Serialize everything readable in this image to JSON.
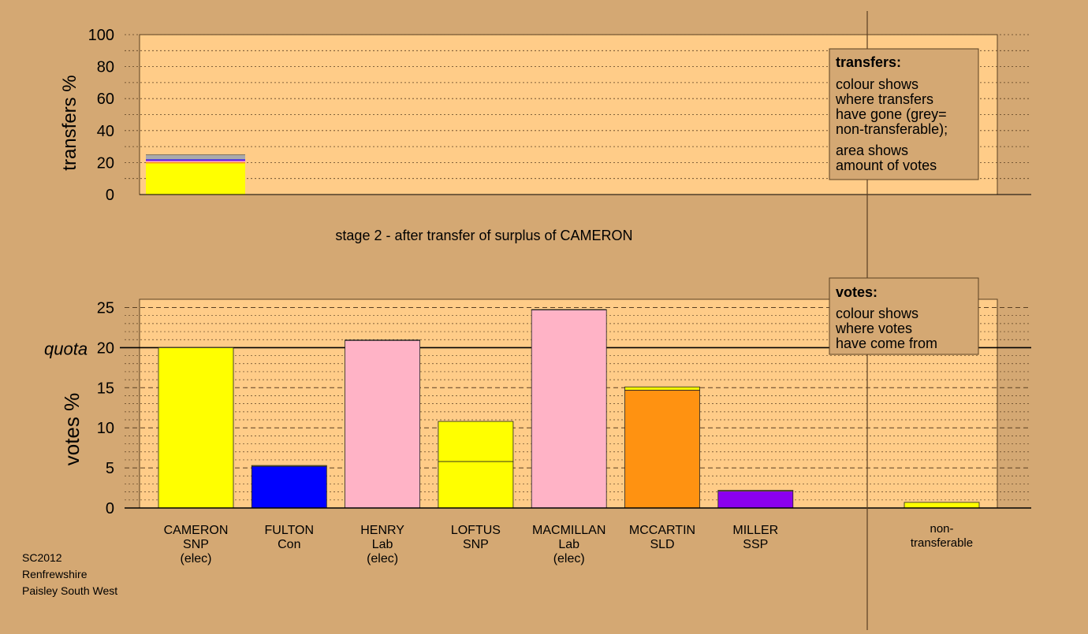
{
  "stage_title": "stage 2 - after transfer of surplus of CAMERON",
  "footer": [
    "SC2012",
    "Renfrewshire",
    "Paisley South West"
  ],
  "colors": {
    "background": "#d4a873",
    "plot_bg": "#ffcc88",
    "SNP": "#ffff00",
    "Con": "#0000ff",
    "Lab": "#ffb3c6",
    "SLD": "#ff9211",
    "SSP": "#8b00ee",
    "non_transferable": "#aaaaaa"
  },
  "transfers_legend": {
    "title": "transfers:",
    "lines": [
      "colour shows",
      "where transfers",
      "have gone (grey=",
      "non-transferable);",
      "area shows",
      "amount of votes"
    ]
  },
  "votes_legend": {
    "title": "votes:",
    "lines": [
      "colour shows",
      "where votes",
      "have come from"
    ]
  },
  "chart_data": [
    {
      "type": "bar",
      "name": "transfers",
      "ylabel": "transfers %",
      "ylim": [
        0,
        100
      ],
      "yticks": [
        0,
        20,
        40,
        60,
        80,
        100
      ],
      "grid": true,
      "bars": [
        {
          "label": "CAMERON",
          "segments": [
            {
              "to": "SNP",
              "color": "#ffff00",
              "value": 19.5
            },
            {
              "to": "SLD",
              "color": "#ff9211",
              "value": 0.8
            },
            {
              "to": "Lab",
              "color": "#ffb3c6",
              "value": 0.7
            },
            {
              "to": "SSP",
              "color": "#8b00ee",
              "value": 0.5
            },
            {
              "to": "Con",
              "color": "#0000ff",
              "value": 0.5
            },
            {
              "to": "non-transferable",
              "color": "#aaaaaa",
              "value": 2.8
            }
          ]
        }
      ]
    },
    {
      "type": "bar",
      "name": "votes",
      "ylabel": "votes %",
      "ylim": [
        0,
        25
      ],
      "yticks": [
        0,
        5,
        10,
        15,
        20,
        25
      ],
      "quota": 20,
      "quota_label": "quota",
      "grid": true,
      "candidates": [
        {
          "name": "CAMERON",
          "party": "SNP",
          "status": "(elec)",
          "segments": [
            {
              "from": "SNP",
              "color": "#ffff00",
              "value": 20.0
            }
          ]
        },
        {
          "name": "FULTON",
          "party": "Con",
          "status": "",
          "segments": [
            {
              "from": "Con",
              "color": "#0000ff",
              "value": 5.2
            },
            {
              "from": "SNP",
              "color": "#ffff00",
              "value": 0.1
            }
          ]
        },
        {
          "name": "HENRY",
          "party": "Lab",
          "status": "(elec)",
          "segments": [
            {
              "from": "Lab",
              "color": "#ffb3c6",
              "value": 20.9
            },
            {
              "from": "SNP",
              "color": "#ffff00",
              "value": 0.05
            }
          ]
        },
        {
          "name": "LOFTUS",
          "party": "SNP",
          "status": "",
          "segments": [
            {
              "from": "SNP",
              "color": "#ffff00",
              "value": 5.8
            },
            {
              "from": "CAMERON",
              "color": "#ffff00",
              "value": 5.0
            }
          ]
        },
        {
          "name": "MACMILLAN",
          "party": "Lab",
          "status": "(elec)",
          "segments": [
            {
              "from": "Lab",
              "color": "#ffb3c6",
              "value": 24.7
            },
            {
              "from": "SNP",
              "color": "#ffff00",
              "value": 0.05
            }
          ]
        },
        {
          "name": "MCCARTIN",
          "party": "SLD",
          "status": "",
          "segments": [
            {
              "from": "SLD",
              "color": "#ff9211",
              "value": 14.7
            },
            {
              "from": "SNP",
              "color": "#ffff00",
              "value": 0.4
            }
          ]
        },
        {
          "name": "MILLER",
          "party": "SSP",
          "status": "",
          "segments": [
            {
              "from": "SSP",
              "color": "#8b00ee",
              "value": 2.1
            },
            {
              "from": "SNP",
              "color": "#ffff00",
              "value": 0.1
            }
          ]
        }
      ],
      "non_transferable": {
        "label_lines": [
          "non-",
          "transferable"
        ],
        "segments": [
          {
            "from": "SNP",
            "color": "#ffff00",
            "value": 0.7
          }
        ]
      }
    }
  ]
}
